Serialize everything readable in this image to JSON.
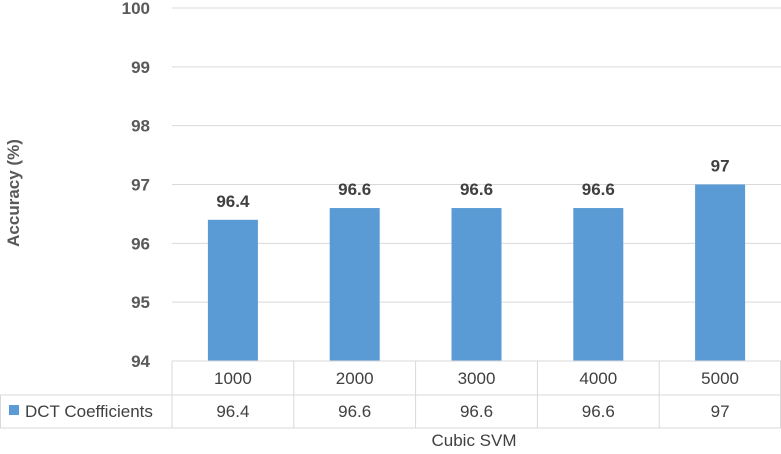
{
  "chart_data": {
    "type": "bar",
    "categories": [
      "1000",
      "2000",
      "3000",
      "4000",
      "5000"
    ],
    "series": [
      {
        "name": "DCT Coefficients",
        "values": [
          96.4,
          96.6,
          96.6,
          96.6,
          97
        ],
        "color": "#5B9BD5"
      }
    ],
    "data_labels": [
      "96.4",
      "96.6",
      "96.6",
      "96.6",
      "97"
    ],
    "ylabel": "Accuracy (%)",
    "xlabel": "Cubic SVM",
    "ylim": [
      94,
      100
    ],
    "yticks": [
      "94",
      "95",
      "96",
      "97",
      "98",
      "99",
      "100"
    ],
    "grid": true,
    "legend": "data-table",
    "data_table": true
  }
}
